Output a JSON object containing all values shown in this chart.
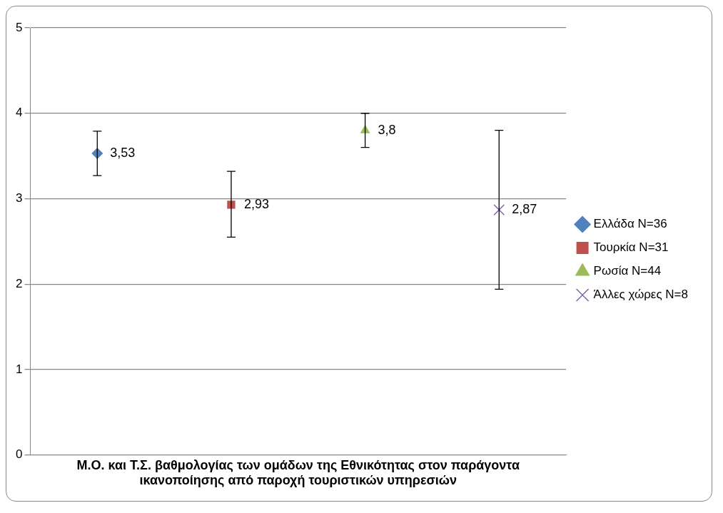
{
  "chart_data": {
    "type": "scatter",
    "xlabel": "Μ.Ο. και Τ.Σ. βαθμολογίας των ομάδων της Εθνικότητας στον παράγοντα ικανοποίησης από παροχή τουριστικών υπηρεσιών",
    "categories": [
      null,
      null,
      null,
      null
    ],
    "series": [
      {
        "name": "Ελλάδα N=36",
        "color": "#4f81bd",
        "marker": "diamond",
        "values": [
          3.53,
          null,
          null,
          null
        ],
        "errors": [
          [
            3.27,
            3.79
          ],
          null,
          null,
          null
        ],
        "value_labels": [
          "3,53",
          null,
          null,
          null
        ]
      },
      {
        "name": "Τουρκία N=31",
        "color": "#c0504d",
        "marker": "square",
        "values": [
          null,
          2.93,
          null,
          null
        ],
        "errors": [
          null,
          [
            2.55,
            3.32
          ],
          null,
          null
        ],
        "value_labels": [
          null,
          "2,93",
          null,
          null
        ]
      },
      {
        "name": "Ρωσία N=44",
        "color": "#9bbb59",
        "marker": "triangle",
        "values": [
          null,
          null,
          3.8,
          null
        ],
        "errors": [
          null,
          null,
          [
            3.6,
            4.0
          ],
          null
        ],
        "value_labels": [
          null,
          null,
          "3,8",
          null
        ]
      },
      {
        "name": "Άλλες χώρες N=8",
        "color": "#8064a2",
        "marker": "cross",
        "values": [
          null,
          null,
          null,
          2.87
        ],
        "errors": [
          null,
          null,
          null,
          [
            1.94,
            3.8
          ]
        ],
        "value_labels": [
          null,
          null,
          null,
          "2,87"
        ]
      }
    ],
    "ylim": [
      0,
      5
    ],
    "yticks": [
      0,
      1,
      2,
      3,
      4,
      5
    ],
    "grid": "y",
    "legend": "right",
    "tick_labels": "y"
  }
}
